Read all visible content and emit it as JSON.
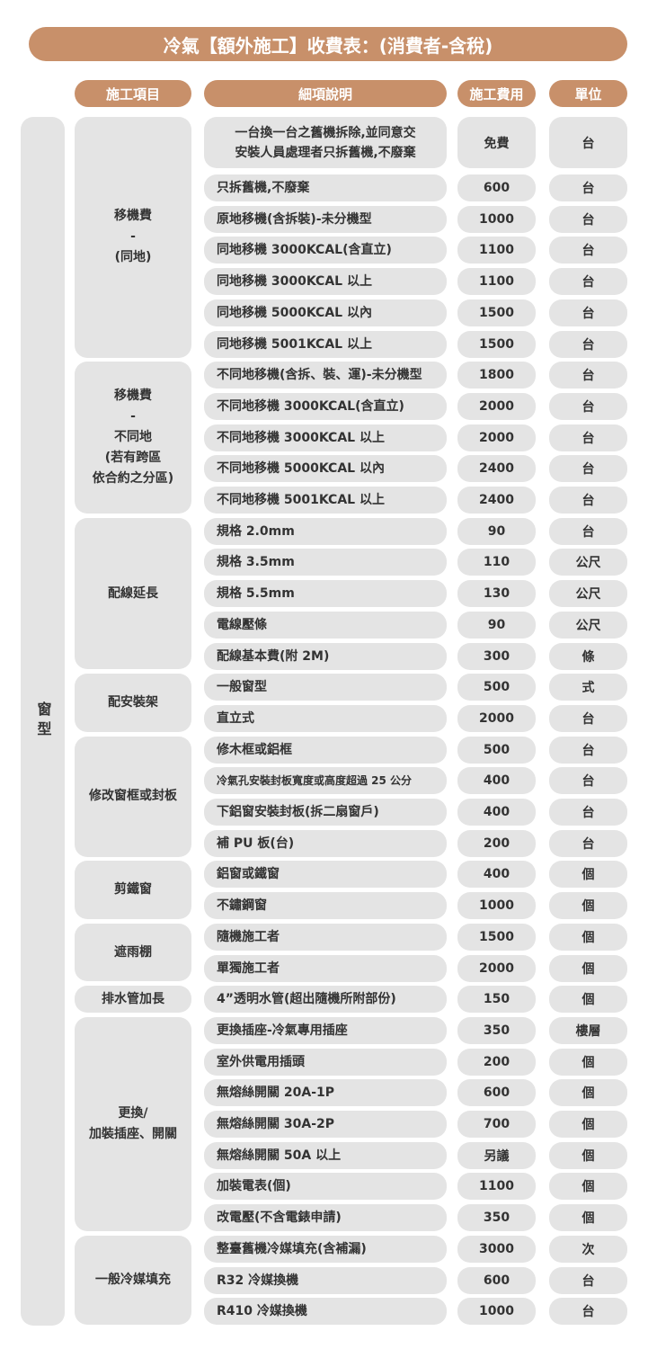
{
  "title": "冷氣【額外施工】收費表：(消費者-含稅)",
  "headers": {
    "item": "施工項目",
    "desc": "細項說明",
    "fee": "施工費用",
    "unit": "單位"
  },
  "side_label": "窗型",
  "colors": {
    "accent": "#c8906a",
    "cell": "#e4e4e4",
    "text": "#333333"
  },
  "groups": [
    {
      "label": "移機費\n-\n(同地)",
      "rows": [
        {
          "desc": "一台換一台之舊機拆除,並同意交\n安裝人員處理者只拆舊機,不廢棄",
          "fee": "免費",
          "unit": "台"
        },
        {
          "desc": "只拆舊機,不廢棄",
          "fee": "600",
          "unit": "台"
        },
        {
          "desc": "原地移機(含拆裝)-未分機型",
          "fee": "1000",
          "unit": "台"
        },
        {
          "desc": "同地移機 3000KCAL(含直立)",
          "fee": "1100",
          "unit": "台"
        },
        {
          "desc": "同地移機 3000KCAL 以上",
          "fee": "1100",
          "unit": "台"
        },
        {
          "desc": "同地移機 5000KCAL 以內",
          "fee": "1500",
          "unit": "台"
        },
        {
          "desc": "同地移機 5001KCAL 以上",
          "fee": "1500",
          "unit": "台"
        }
      ]
    },
    {
      "label": "移機費\n-\n不同地\n(若有跨區\n依合約之分區)",
      "rows": [
        {
          "desc": "不同地移機(含拆、裝、運)-未分機型",
          "fee": "1800",
          "unit": "台"
        },
        {
          "desc": "不同地移機 3000KCAL(含直立)",
          "fee": "2000",
          "unit": "台"
        },
        {
          "desc": "不同地移機 3000KCAL 以上",
          "fee": "2000",
          "unit": "台"
        },
        {
          "desc": "不同地移機 5000KCAL 以內",
          "fee": "2400",
          "unit": "台"
        },
        {
          "desc": "不同地移機 5001KCAL 以上",
          "fee": "2400",
          "unit": "台"
        }
      ]
    },
    {
      "label": "配線延長",
      "rows": [
        {
          "desc": "規格 2.0mm",
          "fee": "90",
          "unit": "台"
        },
        {
          "desc": "規格 3.5mm",
          "fee": "110",
          "unit": "公尺"
        },
        {
          "desc": "規格 5.5mm",
          "fee": "130",
          "unit": "公尺"
        },
        {
          "desc": "電線壓條",
          "fee": "90",
          "unit": "公尺"
        },
        {
          "desc": "配線基本費(附 2M)",
          "fee": "300",
          "unit": "條"
        }
      ]
    },
    {
      "label": "配安裝架",
      "rows": [
        {
          "desc": "一般窗型",
          "fee": "500",
          "unit": "式"
        },
        {
          "desc": "直立式",
          "fee": "2000",
          "unit": "台"
        }
      ]
    },
    {
      "label": "修改窗框或封板",
      "rows": [
        {
          "desc": "修木框或鋁框",
          "fee": "500",
          "unit": "台"
        },
        {
          "desc": "冷氣孔安裝封板寬度或高度超過 25 公分",
          "fee": "400",
          "unit": "台",
          "small": true
        },
        {
          "desc": "下鋁窗安裝封板(拆二扇窗戶)",
          "fee": "400",
          "unit": "台"
        },
        {
          "desc": "補 PU 板(台)",
          "fee": "200",
          "unit": "台"
        }
      ]
    },
    {
      "label": "剪鐵窗",
      "rows": [
        {
          "desc": "鋁窗或鐵窗",
          "fee": "400",
          "unit": "個"
        },
        {
          "desc": "不鏽鋼窗",
          "fee": "1000",
          "unit": "個"
        }
      ]
    },
    {
      "label": "遮雨棚",
      "rows": [
        {
          "desc": "隨機施工者",
          "fee": "1500",
          "unit": "個"
        },
        {
          "desc": "單獨施工者",
          "fee": "2000",
          "unit": "個"
        }
      ]
    },
    {
      "label": "排水管加長",
      "rows": [
        {
          "desc": "4”透明水管(超出隨機所附部份)",
          "fee": "150",
          "unit": "個"
        }
      ]
    },
    {
      "label": "更換/\n加裝插座、開關",
      "rows": [
        {
          "desc": "更換插座-冷氣專用插座",
          "fee": "350",
          "unit": "樓層"
        },
        {
          "desc": "室外供電用插頭",
          "fee": "200",
          "unit": "個"
        },
        {
          "desc": "無熔絲開關 20A-1P",
          "fee": "600",
          "unit": "個"
        },
        {
          "desc": "無熔絲開關 30A-2P",
          "fee": "700",
          "unit": "個"
        },
        {
          "desc": "無熔絲開關 50A 以上",
          "fee": "另議",
          "unit": "個"
        },
        {
          "desc": "加裝電表(個)",
          "fee": "1100",
          "unit": "個"
        },
        {
          "desc": "改電壓(不含電錶申請)",
          "fee": "350",
          "unit": "個"
        }
      ]
    },
    {
      "label": "一般冷媒填充",
      "rows": [
        {
          "desc": "整臺舊機冷媒填充(含補漏)",
          "fee": "3000",
          "unit": "次"
        },
        {
          "desc": "R32 冷媒換機",
          "fee": "600",
          "unit": "台"
        },
        {
          "desc": "R410 冷媒換機",
          "fee": "1000",
          "unit": "台"
        }
      ]
    }
  ]
}
